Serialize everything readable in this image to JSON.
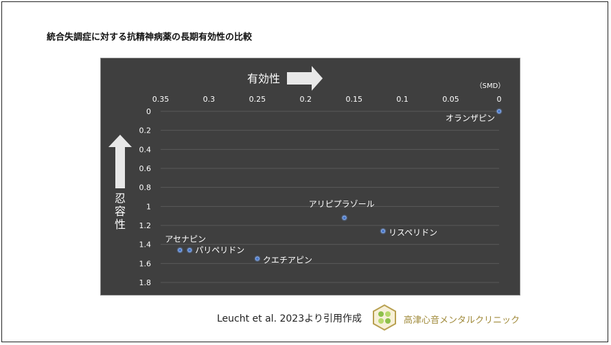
{
  "slide": {
    "title": "統合失調症に対する抗精神病薬の長期有効性の比較",
    "citation": "Leucht et al. 2023より引用作成",
    "clinic_name": "高津心音メンタルクリニック"
  },
  "chart_data": {
    "type": "scatter",
    "title": "",
    "xlabel": "有効性",
    "ylabel": "忍容性",
    "unit_label": "（SMD）",
    "xlim": [
      0,
      0.35
    ],
    "ylim": [
      0,
      1.8
    ],
    "x_reversed": true,
    "y_reversed": true,
    "x_ticks": [
      "0.35",
      "0.3",
      "0.25",
      "0.2",
      "0.15",
      "0.1",
      "0.05",
      "0"
    ],
    "y_ticks": [
      "0",
      "0.2",
      "0.4",
      "0.6",
      "0.8",
      "1",
      "1.2",
      "1.4",
      "1.6",
      "1.8"
    ],
    "grid": "horizontal",
    "points": [
      {
        "label": "オランザピン",
        "x": 0.0,
        "y": 0.0
      },
      {
        "label": "アリピプラゾール",
        "x": 0.16,
        "y": 1.12
      },
      {
        "label": "リスペリドン",
        "x": 0.12,
        "y": 1.26
      },
      {
        "label": "アセナピン",
        "x": 0.33,
        "y": 1.46
      },
      {
        "label": "パリペリドン",
        "x": 0.32,
        "y": 1.46
      },
      {
        "label": "クエチアピン",
        "x": 0.25,
        "y": 1.55
      }
    ],
    "colors": {
      "background": "#3f3f3f",
      "point": "#4a78c8",
      "text": "#ffffff",
      "grid": "#5a5a5a"
    }
  }
}
